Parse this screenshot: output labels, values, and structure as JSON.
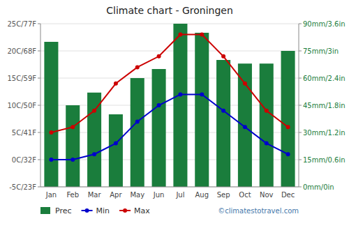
{
  "chart_data": {
    "type": "bar",
    "title": "Climate chart - Groningen",
    "categories": [
      "Jan",
      "Feb",
      "Mar",
      "Apr",
      "May",
      "Jun",
      "Jul",
      "Aug",
      "Sep",
      "Oct",
      "Nov",
      "Dec"
    ],
    "series": [
      {
        "name": "Prec",
        "type": "bar",
        "axis": "y2",
        "color": "#1a7d3c",
        "values": [
          80,
          45,
          52,
          40,
          60,
          65,
          90,
          85,
          70,
          68,
          68,
          75
        ]
      },
      {
        "name": "Min",
        "type": "line",
        "color": "#0000cc",
        "marker": "circle",
        "line_style": "solid",
        "values": [
          0,
          0,
          1,
          3,
          7,
          10,
          12,
          12,
          9,
          6,
          3,
          1
        ]
      },
      {
        "name": "Max",
        "type": "line",
        "color": "#cc0000",
        "marker": "circle",
        "line_style": "solid",
        "values": [
          5,
          6,
          9,
          14,
          17,
          19,
          23,
          23,
          19,
          14,
          9,
          6
        ]
      }
    ],
    "ylim": [
      -5,
      25
    ],
    "yticks": [
      {
        "value": -5,
        "label": "-5C/23F"
      },
      {
        "value": 0,
        "label": "0C/32F"
      },
      {
        "value": 5,
        "label": "5C/41F"
      },
      {
        "value": 10,
        "label": "10C/50F"
      },
      {
        "value": 15,
        "label": "15C/59F"
      },
      {
        "value": 20,
        "label": "20C/68F"
      },
      {
        "value": 25,
        "label": "25C/77F"
      }
    ],
    "y2lim": [
      0,
      90
    ],
    "y2ticks": [
      {
        "value": 0,
        "label": "0mm/0in"
      },
      {
        "value": 15,
        "label": "15mm/0.6in"
      },
      {
        "value": 30,
        "label": "30mm/1.2in"
      },
      {
        "value": 45,
        "label": "45mm/1.8in"
      },
      {
        "value": 60,
        "label": "60mm/2.4in"
      },
      {
        "value": 75,
        "label": "75mm/3in"
      },
      {
        "value": 90,
        "label": "90mm/3.6in"
      }
    ],
    "grid": true,
    "legend": "bottom-left",
    "annotations": [
      "©climatestotravel.com"
    ]
  }
}
